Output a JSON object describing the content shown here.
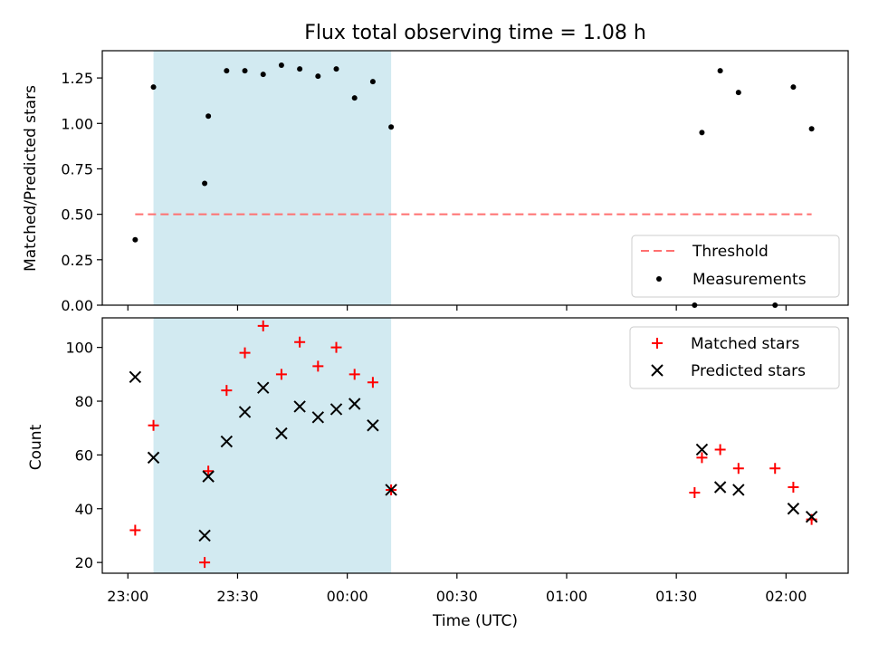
{
  "chart_data": [
    {
      "type": "scatter",
      "title": "Flux total observing time = 1.08 h",
      "xlabel": "",
      "ylabel": "Matched/Predicted stars",
      "xlim": [
        "22:53",
        "02:17"
      ],
      "ylim": [
        0,
        1.4
      ],
      "yticks": [
        "0.00",
        "0.25",
        "0.50",
        "0.75",
        "1.00",
        "1.25"
      ],
      "shaded_region": {
        "x0": "23:07",
        "x1": "00:12",
        "color": "#add8e6"
      },
      "threshold": {
        "name": "Threshold",
        "y": 0.5,
        "x": [
          "23:02",
          "02:07"
        ],
        "color": "#ff7070"
      },
      "series": [
        {
          "name": "Measurements",
          "marker": "dot",
          "color": "#000000",
          "points": [
            {
              "x": "23:02",
              "y": 0.36
            },
            {
              "x": "23:07",
              "y": 1.2
            },
            {
              "x": "23:21",
              "y": 0.67
            },
            {
              "x": "23:22",
              "y": 1.04
            },
            {
              "x": "23:27",
              "y": 1.29
            },
            {
              "x": "23:32",
              "y": 1.29
            },
            {
              "x": "23:37",
              "y": 1.27
            },
            {
              "x": "23:42",
              "y": 1.32
            },
            {
              "x": "23:47",
              "y": 1.3
            },
            {
              "x": "23:52",
              "y": 1.26
            },
            {
              "x": "23:57",
              "y": 1.3
            },
            {
              "x": "00:02",
              "y": 1.14
            },
            {
              "x": "00:07",
              "y": 1.23
            },
            {
              "x": "00:12",
              "y": 0.98
            },
            {
              "x": "01:35",
              "y": 0.0
            },
            {
              "x": "01:37",
              "y": 0.95
            },
            {
              "x": "01:42",
              "y": 1.29
            },
            {
              "x": "01:47",
              "y": 1.17
            },
            {
              "x": "01:57",
              "y": 0.0
            },
            {
              "x": "02:02",
              "y": 1.2
            },
            {
              "x": "02:07",
              "y": 0.97
            }
          ]
        }
      ],
      "legend": {
        "placement": "lower-right",
        "entries": [
          "Threshold",
          "Measurements"
        ]
      }
    },
    {
      "type": "scatter",
      "title": "",
      "xlabel": "Time (UTC)",
      "ylabel": "Count",
      "xlim": [
        "22:53",
        "02:17"
      ],
      "ylim": [
        16,
        111
      ],
      "yticks": [
        "20",
        "40",
        "60",
        "80",
        "100"
      ],
      "xticks": [
        "23:00",
        "23:30",
        "00:00",
        "00:30",
        "01:00",
        "01:30",
        "02:00"
      ],
      "shaded_region": {
        "x0": "23:07",
        "x1": "00:12",
        "color": "#add8e6"
      },
      "series": [
        {
          "name": "Matched stars",
          "marker": "plus",
          "color": "#ff0000",
          "points": [
            {
              "x": "23:02",
              "y": 32
            },
            {
              "x": "23:07",
              "y": 71
            },
            {
              "x": "23:21",
              "y": 20
            },
            {
              "x": "23:22",
              "y": 54
            },
            {
              "x": "23:27",
              "y": 84
            },
            {
              "x": "23:32",
              "y": 98
            },
            {
              "x": "23:37",
              "y": 108
            },
            {
              "x": "23:42",
              "y": 90
            },
            {
              "x": "23:47",
              "y": 102
            },
            {
              "x": "23:52",
              "y": 93
            },
            {
              "x": "23:57",
              "y": 100
            },
            {
              "x": "00:02",
              "y": 90
            },
            {
              "x": "00:07",
              "y": 87
            },
            {
              "x": "00:12",
              "y": 47
            },
            {
              "x": "01:35",
              "y": 46
            },
            {
              "x": "01:37",
              "y": 59
            },
            {
              "x": "01:42",
              "y": 62
            },
            {
              "x": "01:47",
              "y": 55
            },
            {
              "x": "01:57",
              "y": 55
            },
            {
              "x": "02:02",
              "y": 48
            },
            {
              "x": "02:07",
              "y": 36
            }
          ]
        },
        {
          "name": "Predicted stars",
          "marker": "x",
          "color": "#000000",
          "points": [
            {
              "x": "23:02",
              "y": 89
            },
            {
              "x": "23:07",
              "y": 59
            },
            {
              "x": "23:21",
              "y": 30
            },
            {
              "x": "23:22",
              "y": 52
            },
            {
              "x": "23:27",
              "y": 65
            },
            {
              "x": "23:32",
              "y": 76
            },
            {
              "x": "23:37",
              "y": 85
            },
            {
              "x": "23:42",
              "y": 68
            },
            {
              "x": "23:47",
              "y": 78
            },
            {
              "x": "23:52",
              "y": 74
            },
            {
              "x": "23:57",
              "y": 77
            },
            {
              "x": "00:02",
              "y": 79
            },
            {
              "x": "00:07",
              "y": 71
            },
            {
              "x": "00:12",
              "y": 47
            },
            {
              "x": "01:37",
              "y": 62
            },
            {
              "x": "01:42",
              "y": 48
            },
            {
              "x": "01:47",
              "y": 47
            },
            {
              "x": "02:02",
              "y": 40
            },
            {
              "x": "02:07",
              "y": 37
            }
          ]
        }
      ],
      "legend": {
        "placement": "upper-right",
        "entries": [
          "Matched stars",
          "Predicted stars"
        ]
      }
    }
  ]
}
